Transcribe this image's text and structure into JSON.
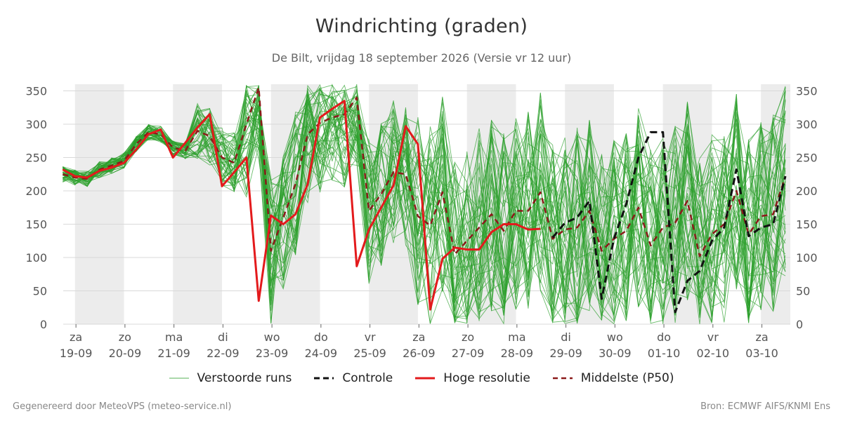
{
  "header": {
    "title": "Windrichting (graden)",
    "subtitle": "De Bilt, vrijdag 18 september 2026 (Versie vr 12 uur)"
  },
  "footer": {
    "left": "Gegenereerd door MeteoVPS (meteo-service.nl)",
    "right": "Bron: ECMWF AIFS/KNMI Ens"
  },
  "legend": [
    {
      "label": "Verstoorde runs",
      "color": "#2ca02c",
      "style": "thin"
    },
    {
      "label": "Controle",
      "color": "#111111",
      "style": "dashed"
    },
    {
      "label": "Hoge resolutie",
      "color": "#e31a1c",
      "style": "solid"
    },
    {
      "label": "Middelste (P50)",
      "color": "#8b1a1a",
      "style": "dashed"
    }
  ],
  "chart_data": {
    "type": "line",
    "x_unit": "days since 19-09 00h",
    "xlim": [
      -0.24,
      14.6
    ],
    "ylim": [
      0,
      360
    ],
    "yticks": [
      0,
      50,
      100,
      150,
      200,
      250,
      300,
      350
    ],
    "y_axis_both_sides": true,
    "grid": "horizontal",
    "day_ticks": [
      {
        "weekday": "za",
        "date": "19-09"
      },
      {
        "weekday": "zo",
        "date": "20-09"
      },
      {
        "weekday": "ma",
        "date": "21-09"
      },
      {
        "weekday": "di",
        "date": "22-09"
      },
      {
        "weekday": "wo",
        "date": "23-09"
      },
      {
        "weekday": "do",
        "date": "24-09"
      },
      {
        "weekday": "vr",
        "date": "25-09"
      },
      {
        "weekday": "za",
        "date": "26-09"
      },
      {
        "weekday": "zo",
        "date": "27-09"
      },
      {
        "weekday": "ma",
        "date": "28-09"
      },
      {
        "weekday": "di",
        "date": "29-09"
      },
      {
        "weekday": "wo",
        "date": "30-09"
      },
      {
        "weekday": "do",
        "date": "01-10"
      },
      {
        "weekday": "vr",
        "date": "02-10"
      },
      {
        "weekday": "za",
        "date": "03-10"
      }
    ],
    "shaded_bands": [
      [
        0,
        1
      ],
      [
        2,
        3
      ],
      [
        4,
        5
      ],
      [
        6,
        7
      ],
      [
        8,
        9
      ],
      [
        10,
        11
      ],
      [
        12,
        13
      ],
      [
        14,
        14.6
      ]
    ],
    "series": [
      {
        "name": "Hoge resolutie",
        "color": "#e31a1c",
        "style": "solid",
        "points": [
          [
            -0.25,
            232
          ],
          [
            0,
            222
          ],
          [
            0.25,
            220
          ],
          [
            0.5,
            230
          ],
          [
            0.75,
            235
          ],
          [
            1,
            242
          ],
          [
            1.25,
            262
          ],
          [
            1.5,
            285
          ],
          [
            1.75,
            292
          ],
          [
            2,
            250
          ],
          [
            2.25,
            272
          ],
          [
            2.5,
            295
          ],
          [
            2.75,
            315
          ],
          [
            3,
            207
          ],
          [
            3.25,
            228
          ],
          [
            3.5,
            250
          ],
          [
            3.75,
            35
          ],
          [
            4,
            163
          ],
          [
            4.25,
            150
          ],
          [
            4.5,
            165
          ],
          [
            4.75,
            210
          ],
          [
            5,
            310
          ],
          [
            5.25,
            323
          ],
          [
            5.5,
            335
          ],
          [
            5.75,
            87
          ],
          [
            6,
            142
          ],
          [
            6.25,
            175
          ],
          [
            6.5,
            208
          ],
          [
            6.75,
            297
          ],
          [
            7,
            270
          ],
          [
            7.25,
            22
          ],
          [
            7.5,
            98
          ],
          [
            7.75,
            115
          ],
          [
            8,
            112
          ],
          [
            8.25,
            112
          ],
          [
            8.5,
            138
          ],
          [
            8.75,
            150
          ],
          [
            9,
            150
          ],
          [
            9.25,
            142
          ],
          [
            9.5,
            143
          ]
        ]
      },
      {
        "name": "Controle",
        "color": "#111111",
        "style": "dashed",
        "points": [
          [
            9.75,
            130
          ],
          [
            10,
            152
          ],
          [
            10.25,
            160
          ],
          [
            10.5,
            185
          ],
          [
            10.75,
            38
          ],
          [
            11,
            128
          ],
          [
            11.25,
            180
          ],
          [
            11.5,
            250
          ],
          [
            11.75,
            288
          ],
          [
            12,
            288
          ],
          [
            12.25,
            18
          ],
          [
            12.5,
            65
          ],
          [
            12.75,
            80
          ],
          [
            13,
            125
          ],
          [
            13.25,
            145
          ],
          [
            13.5,
            232
          ],
          [
            13.75,
            132
          ],
          [
            14,
            145
          ],
          [
            14.25,
            150
          ],
          [
            14.5,
            222
          ]
        ]
      },
      {
        "name": "Middelste (P50)",
        "color": "#8b1a1a",
        "style": "dashed",
        "points": [
          [
            -0.25,
            225
          ],
          [
            0,
            220
          ],
          [
            0.25,
            218
          ],
          [
            0.5,
            232
          ],
          [
            0.75,
            238
          ],
          [
            1,
            245
          ],
          [
            1.25,
            270
          ],
          [
            1.5,
            288
          ],
          [
            1.75,
            285
          ],
          [
            2,
            265
          ],
          [
            2.25,
            260
          ],
          [
            2.5,
            290
          ],
          [
            2.75,
            282
          ],
          [
            3,
            250
          ],
          [
            3.25,
            242
          ],
          [
            3.5,
            300
          ],
          [
            3.75,
            355
          ],
          [
            4,
            110
          ],
          [
            4.25,
            160
          ],
          [
            4.5,
            210
          ],
          [
            4.75,
            285
          ],
          [
            5,
            302
          ],
          [
            5.25,
            310
          ],
          [
            5.5,
            315
          ],
          [
            5.75,
            340
          ],
          [
            6,
            170
          ],
          [
            6.25,
            195
          ],
          [
            6.5,
            228
          ],
          [
            6.75,
            225
          ],
          [
            7,
            162
          ],
          [
            7.25,
            148
          ],
          [
            7.5,
            198
          ],
          [
            7.75,
            105
          ],
          [
            8,
            125
          ],
          [
            8.25,
            145
          ],
          [
            8.5,
            165
          ],
          [
            8.75,
            140
          ],
          [
            9,
            170
          ],
          [
            9.25,
            170
          ],
          [
            9.5,
            198
          ],
          [
            9.75,
            128
          ],
          [
            10,
            142
          ],
          [
            10.25,
            145
          ],
          [
            10.5,
            170
          ],
          [
            10.75,
            110
          ],
          [
            11,
            128
          ],
          [
            11.25,
            140
          ],
          [
            11.5,
            175
          ],
          [
            11.75,
            118
          ],
          [
            12,
            145
          ],
          [
            12.25,
            152
          ],
          [
            12.5,
            185
          ],
          [
            12.75,
            102
          ],
          [
            13,
            135
          ],
          [
            13.25,
            150
          ],
          [
            13.5,
            200
          ],
          [
            13.75,
            135
          ],
          [
            14,
            162
          ],
          [
            14.25,
            165
          ],
          [
            14.5,
            222
          ]
        ]
      }
    ]
  }
}
